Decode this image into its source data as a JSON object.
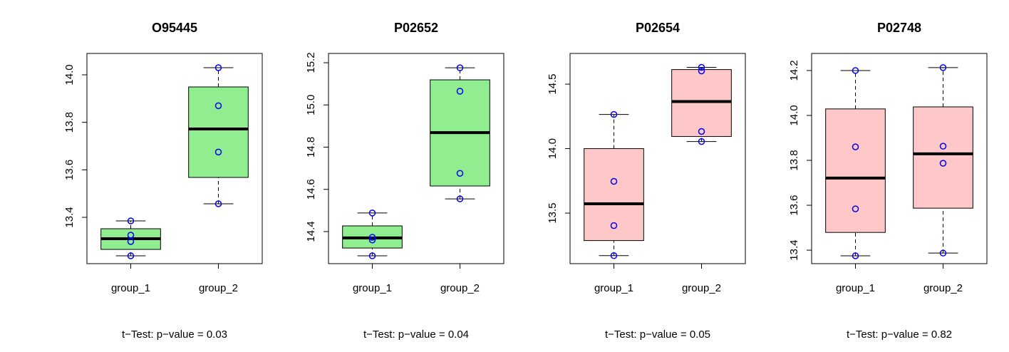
{
  "chart_data": [
    {
      "type": "box",
      "title": "O95445",
      "subtitle": "t−Test: p−value = 0.03",
      "color": "#90ee90",
      "categories": [
        "group_1",
        "group_2"
      ],
      "boxes": [
        {
          "whislo": 13.238,
          "q1": 13.265,
          "med": 13.31,
          "q3": 13.352,
          "whishi": 13.385,
          "points": [
            13.385,
            13.325,
            13.298,
            13.238
          ]
        },
        {
          "whislo": 13.457,
          "q1": 13.568,
          "med": 13.772,
          "q3": 13.949,
          "whishi": 14.03,
          "points": [
            14.03,
            13.87,
            13.675,
            13.457
          ]
        }
      ],
      "ylim": [
        13.205,
        14.09
      ],
      "yticks": [
        13.4,
        13.6,
        13.8,
        {
          "value": 14.0,
          "label": "14.0"
        }
      ]
    },
    {
      "type": "box",
      "title": "P02652",
      "subtitle": "t−Test: p−value = 0.04",
      "color": "#90ee90",
      "categories": [
        "group_1",
        "group_2"
      ],
      "boxes": [
        {
          "whislo": 14.285,
          "q1": 14.322,
          "med": 14.37,
          "q3": 14.427,
          "whishi": 14.488,
          "points": [
            14.488,
            14.373,
            14.36,
            14.285
          ]
        },
        {
          "whislo": 14.555,
          "q1": 14.616,
          "med": 14.869,
          "q3": 15.119,
          "whishi": 15.176,
          "points": [
            15.176,
            15.065,
            14.676,
            14.555
          ]
        }
      ],
      "ylim": [
        14.248,
        15.244
      ],
      "yticks": [
        14.4,
        14.6,
        14.8,
        {
          "value": 15.0,
          "label": "15.0"
        },
        15.2
      ]
    },
    {
      "type": "box",
      "title": "P02654",
      "subtitle": "t−Test: p−value = 0.05",
      "color": "#ffc8c8",
      "categories": [
        "group_1",
        "group_2"
      ],
      "boxes": [
        {
          "whislo": 13.17,
          "q1": 13.287,
          "med": 13.572,
          "q3": 14.0,
          "whishi": 14.265,
          "points": [
            14.265,
            13.746,
            13.403,
            13.17
          ]
        },
        {
          "whislo": 14.055,
          "q1": 14.094,
          "med": 14.365,
          "q3": 14.613,
          "whishi": 14.63,
          "points": [
            14.63,
            14.602,
            14.133,
            14.055
          ]
        }
      ],
      "ylim": [
        13.108,
        14.738
      ],
      "yticks": [
        13.5,
        {
          "value": 14.0,
          "label": "14.0"
        },
        14.5
      ]
    },
    {
      "type": "box",
      "title": "P02748",
      "subtitle": "t−Test: p−value = 0.82",
      "color": "#ffc8c8",
      "categories": [
        "group_1",
        "group_2"
      ],
      "boxes": [
        {
          "whislo": 13.375,
          "q1": 13.479,
          "med": 13.721,
          "q3": 14.029,
          "whishi": 14.2,
          "points": [
            14.2,
            13.86,
            13.584,
            13.375
          ]
        },
        {
          "whislo": 13.387,
          "q1": 13.587,
          "med": 13.829,
          "q3": 14.038,
          "whishi": 14.213,
          "points": [
            14.213,
            13.863,
            13.787,
            13.387
          ]
        }
      ],
      "ylim": [
        13.34,
        14.276
      ],
      "yticks": [
        13.4,
        13.6,
        13.8,
        {
          "value": 14.0,
          "label": "14.0"
        },
        14.2
      ]
    }
  ]
}
